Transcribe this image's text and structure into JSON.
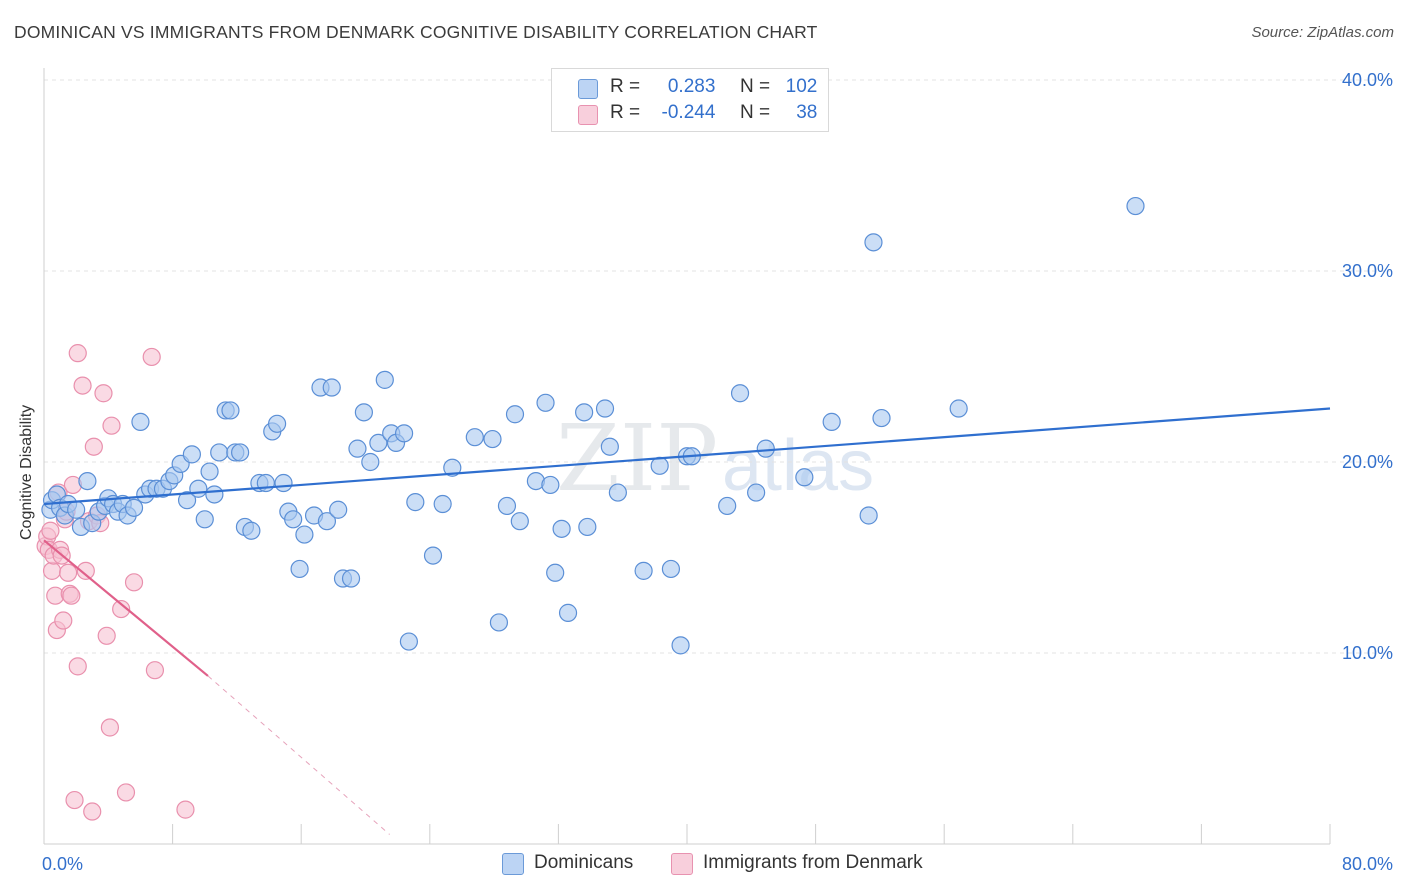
{
  "title": "DOMINICAN VS IMMIGRANTS FROM DENMARK COGNITIVE DISABILITY CORRELATION CHART",
  "source": "Source: ZipAtlas.com",
  "watermark": {
    "zip": "ZIP",
    "atlas": "atlas"
  },
  "colors": {
    "blue_fill": "#a9c8f0",
    "blue_stroke": "#5b8fd6",
    "blue_line": "#2f6fcf",
    "pink_fill": "#f6c1d2",
    "pink_stroke": "#e990ad",
    "pink_line": "#e0608a",
    "grid": "#e3e3e3",
    "axis_text": "#3370cc"
  },
  "stats": [
    {
      "r_label": "R =",
      "r_value": "0.283",
      "n_label": "N =",
      "n_value": "102",
      "series": "blue"
    },
    {
      "r_label": "R =",
      "r_value": "-0.244",
      "n_label": "N =",
      "n_value": "38",
      "series": "pink"
    }
  ],
  "legend": [
    {
      "label": "Dominicans",
      "series": "blue"
    },
    {
      "label": "Immigrants from Denmark",
      "series": "pink"
    }
  ],
  "chart_data": {
    "type": "scatter",
    "title": "DOMINICAN VS IMMIGRANTS FROM DENMARK COGNITIVE DISABILITY CORRELATION CHART",
    "xlabel": "",
    "ylabel": "Cognitive Disability",
    "xlim": [
      0,
      80
    ],
    "ylim": [
      0,
      40
    ],
    "x_tick_labels": [
      {
        "value": 0,
        "label": "0.0%"
      },
      {
        "value": 80,
        "label": "80.0%"
      }
    ],
    "y_tick_labels": [
      {
        "value": 10,
        "label": "10.0%"
      },
      {
        "value": 20,
        "label": "20.0%"
      },
      {
        "value": 30,
        "label": "30.0%"
      },
      {
        "value": 40,
        "label": "40.0%"
      }
    ],
    "grid": "horizontal dashed",
    "legend_position": "bottom-center",
    "series": [
      {
        "name": "Dominicans",
        "color": "#a9c8f0",
        "trend": {
          "x0": 0,
          "y0": 17.8,
          "x1": 80,
          "y1": 22.8
        },
        "points": [
          [
            0.4,
            17.5
          ],
          [
            0.5,
            18.0
          ],
          [
            0.8,
            18.3
          ],
          [
            1.0,
            17.6
          ],
          [
            1.3,
            17.2
          ],
          [
            1.5,
            17.8
          ],
          [
            2.0,
            17.5
          ],
          [
            2.3,
            16.6
          ],
          [
            2.7,
            19.0
          ],
          [
            3.0,
            16.8
          ],
          [
            3.4,
            17.4
          ],
          [
            3.8,
            17.7
          ],
          [
            4.0,
            18.1
          ],
          [
            4.3,
            17.8
          ],
          [
            4.6,
            17.4
          ],
          [
            4.9,
            17.8
          ],
          [
            5.2,
            17.2
          ],
          [
            5.6,
            17.6
          ],
          [
            6.0,
            22.1
          ],
          [
            6.3,
            18.3
          ],
          [
            6.6,
            18.6
          ],
          [
            7.0,
            18.6
          ],
          [
            7.4,
            18.6
          ],
          [
            7.8,
            19.0
          ],
          [
            8.1,
            19.3
          ],
          [
            8.5,
            19.9
          ],
          [
            8.9,
            18.0
          ],
          [
            9.2,
            20.4
          ],
          [
            9.6,
            18.6
          ],
          [
            10.0,
            17.0
          ],
          [
            10.3,
            19.5
          ],
          [
            10.6,
            18.3
          ],
          [
            10.9,
            20.5
          ],
          [
            11.3,
            22.7
          ],
          [
            11.6,
            22.7
          ],
          [
            11.9,
            20.5
          ],
          [
            12.2,
            20.5
          ],
          [
            12.5,
            16.6
          ],
          [
            12.9,
            16.4
          ],
          [
            13.4,
            18.9
          ],
          [
            13.8,
            18.9
          ],
          [
            14.2,
            21.6
          ],
          [
            14.5,
            22.0
          ],
          [
            14.9,
            18.9
          ],
          [
            15.2,
            17.4
          ],
          [
            15.5,
            17.0
          ],
          [
            15.9,
            14.4
          ],
          [
            16.2,
            16.2
          ],
          [
            16.8,
            17.2
          ],
          [
            17.2,
            23.9
          ],
          [
            17.6,
            16.9
          ],
          [
            17.9,
            23.9
          ],
          [
            18.3,
            17.5
          ],
          [
            18.6,
            13.9
          ],
          [
            19.1,
            13.9
          ],
          [
            19.5,
            20.7
          ],
          [
            19.9,
            22.6
          ],
          [
            20.3,
            20.0
          ],
          [
            20.8,
            21.0
          ],
          [
            21.2,
            24.3
          ],
          [
            21.6,
            21.5
          ],
          [
            21.9,
            21.0
          ],
          [
            22.4,
            21.5
          ],
          [
            22.7,
            10.6
          ],
          [
            23.1,
            17.9
          ],
          [
            24.2,
            15.1
          ],
          [
            24.8,
            17.8
          ],
          [
            25.4,
            19.7
          ],
          [
            26.8,
            21.3
          ],
          [
            27.9,
            21.2
          ],
          [
            28.3,
            11.6
          ],
          [
            28.8,
            17.7
          ],
          [
            29.3,
            22.5
          ],
          [
            29.6,
            16.9
          ],
          [
            30.6,
            19.0
          ],
          [
            31.2,
            23.1
          ],
          [
            31.5,
            18.8
          ],
          [
            31.8,
            14.2
          ],
          [
            32.2,
            16.5
          ],
          [
            32.6,
            12.1
          ],
          [
            33.6,
            22.6
          ],
          [
            33.8,
            16.6
          ],
          [
            34.9,
            22.8
          ],
          [
            35.2,
            20.8
          ],
          [
            35.7,
            18.4
          ],
          [
            37.3,
            14.3
          ],
          [
            38.3,
            19.8
          ],
          [
            39.0,
            14.4
          ],
          [
            39.6,
            10.4
          ],
          [
            40.0,
            20.3
          ],
          [
            40.3,
            20.3
          ],
          [
            42.5,
            17.7
          ],
          [
            43.3,
            23.6
          ],
          [
            44.3,
            18.4
          ],
          [
            44.9,
            20.7
          ],
          [
            47.3,
            19.2
          ],
          [
            49.0,
            22.1
          ],
          [
            51.3,
            17.2
          ],
          [
            51.6,
            31.5
          ],
          [
            52.1,
            22.3
          ],
          [
            56.9,
            22.8
          ],
          [
            67.9,
            33.4
          ]
        ]
      },
      {
        "name": "Immigrants from Denmark",
        "color": "#f6c1d2",
        "trend": {
          "x0": 0,
          "y0": 15.9,
          "x1": 10.2,
          "y1": 8.8,
          "dashed_to": {
            "x": 21.5,
            "y": 0.5
          }
        },
        "points": [
          [
            0.1,
            15.6
          ],
          [
            0.2,
            16.1
          ],
          [
            0.3,
            15.4
          ],
          [
            0.4,
            16.4
          ],
          [
            0.5,
            14.3
          ],
          [
            0.6,
            15.1
          ],
          [
            0.7,
            13.0
          ],
          [
            0.8,
            11.2
          ],
          [
            0.9,
            18.4
          ],
          [
            1.0,
            15.4
          ],
          [
            1.1,
            15.1
          ],
          [
            1.2,
            11.7
          ],
          [
            1.3,
            17.0
          ],
          [
            1.4,
            17.4
          ],
          [
            1.5,
            14.2
          ],
          [
            1.6,
            13.1
          ],
          [
            1.7,
            13.0
          ],
          [
            1.8,
            18.8
          ],
          [
            1.9,
            2.3
          ],
          [
            2.1,
            9.3
          ],
          [
            2.1,
            25.7
          ],
          [
            2.4,
            24.0
          ],
          [
            2.6,
            14.3
          ],
          [
            2.8,
            16.9
          ],
          [
            3.0,
            1.7
          ],
          [
            3.1,
            20.8
          ],
          [
            3.3,
            17.2
          ],
          [
            3.5,
            16.8
          ],
          [
            3.7,
            23.6
          ],
          [
            3.9,
            10.9
          ],
          [
            4.1,
            6.1
          ],
          [
            4.2,
            21.9
          ],
          [
            4.8,
            12.3
          ],
          [
            5.1,
            2.7
          ],
          [
            5.6,
            13.7
          ],
          [
            6.7,
            25.5
          ],
          [
            6.9,
            9.1
          ],
          [
            8.8,
            1.8
          ]
        ]
      }
    ]
  }
}
